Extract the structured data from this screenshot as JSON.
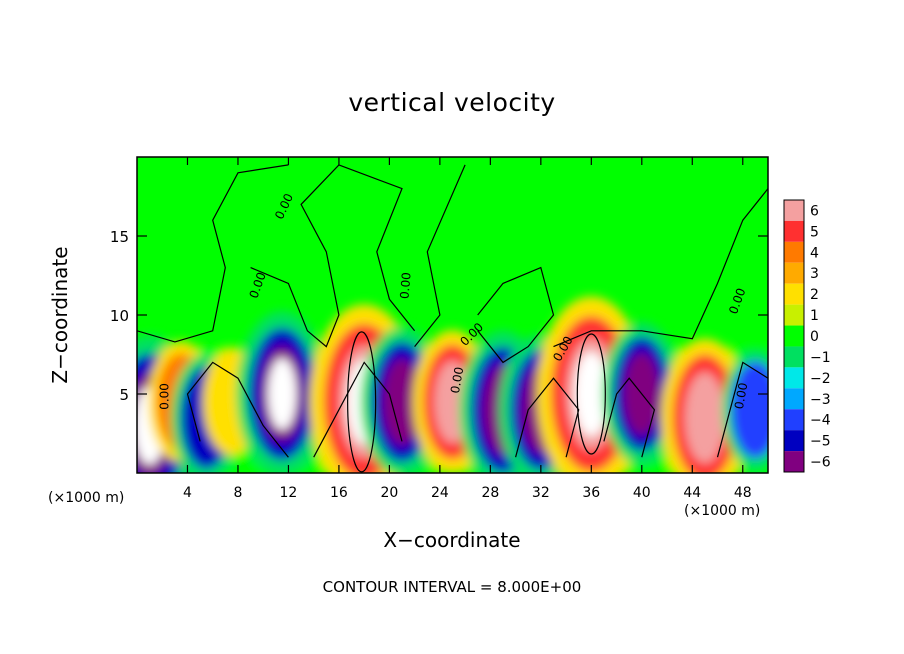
{
  "chart_data": {
    "type": "heatmap",
    "title": "vertical velocity",
    "xlabel": "X−coordinate",
    "ylabel": "Z−coordinate",
    "x_unit_label": "(×1000 m)",
    "footer": "CONTOUR INTERVAL = 8.000E+00",
    "xlim": [
      0,
      50
    ],
    "ylim": [
      0,
      20
    ],
    "x_ticks": [
      4,
      8,
      12,
      16,
      20,
      24,
      28,
      32,
      36,
      40,
      44,
      48
    ],
    "y_ticks": [
      5,
      10,
      15
    ],
    "colorbar": {
      "ticks": [
        "6",
        "5",
        "4",
        "3",
        "2",
        "1",
        "0",
        "−1",
        "−2",
        "−3",
        "−4",
        "−5",
        "−6"
      ],
      "colors": [
        "#f4a0a0",
        "#ff3030",
        "#ff7a00",
        "#ffaa00",
        "#ffe000",
        "#c8f000",
        "#00ff00",
        "#00e060",
        "#00e8e8",
        "#00a8ff",
        "#2040ff",
        "#0000c0",
        "#800080"
      ]
    },
    "contour_labels": [
      "0.00"
    ],
    "cells": [
      {
        "x": 1.0,
        "z": 3.0,
        "w": -12
      },
      {
        "x": 3.5,
        "z": 4.5,
        "w": 4
      },
      {
        "x": 5.5,
        "z": 3.5,
        "w": -5
      },
      {
        "x": 7.5,
        "z": 4.5,
        "w": 2
      },
      {
        "x": 11.5,
        "z": 5.0,
        "w": -10
      },
      {
        "x": 18.0,
        "z": 4.5,
        "w": 14
      },
      {
        "x": 21.0,
        "z": 4.5,
        "w": -8
      },
      {
        "x": 25.0,
        "z": 4.5,
        "w": 7
      },
      {
        "x": 29.0,
        "z": 4.0,
        "w": -9
      },
      {
        "x": 32.0,
        "z": 4.0,
        "w": -8
      },
      {
        "x": 36.0,
        "z": 5.0,
        "w": 14
      },
      {
        "x": 40.0,
        "z": 5.0,
        "w": -7
      },
      {
        "x": 45.0,
        "z": 3.5,
        "w": 9
      },
      {
        "x": 49.0,
        "z": 4.0,
        "w": -4
      }
    ]
  }
}
